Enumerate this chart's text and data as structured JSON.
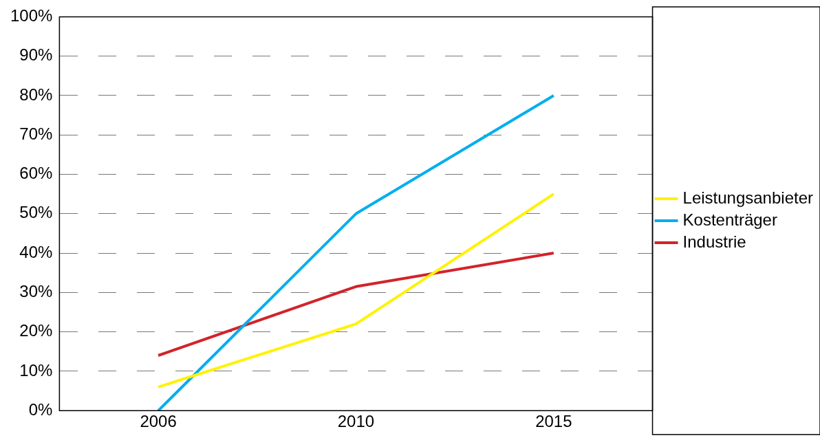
{
  "chart_data": {
    "type": "line",
    "categories": [
      "2006",
      "2010",
      "2015"
    ],
    "series": [
      {
        "name": "Leistungsanbieter",
        "color": "#fff200",
        "values": [
          6,
          22,
          55
        ]
      },
      {
        "name": "Kostenträger",
        "color": "#00aeef",
        "values": [
          0,
          50,
          80
        ]
      },
      {
        "name": "Industrie",
        "color": "#d2232a",
        "values": [
          14,
          31.5,
          40
        ]
      }
    ],
    "ylim": [
      0,
      100
    ],
    "yticks": [
      {
        "value": 0,
        "label": "0%"
      },
      {
        "value": 10,
        "label": "10%"
      },
      {
        "value": 20,
        "label": "20%"
      },
      {
        "value": 30,
        "label": "30%"
      },
      {
        "value": 40,
        "label": "40%"
      },
      {
        "value": 50,
        "label": "50%"
      },
      {
        "value": 60,
        "label": "60%"
      },
      {
        "value": 70,
        "label": "70%"
      },
      {
        "value": 80,
        "label": "80%"
      },
      {
        "value": 90,
        "label": "90%"
      },
      {
        "value": 100,
        "label": "100%"
      }
    ],
    "grid": "y",
    "legend": "right"
  }
}
